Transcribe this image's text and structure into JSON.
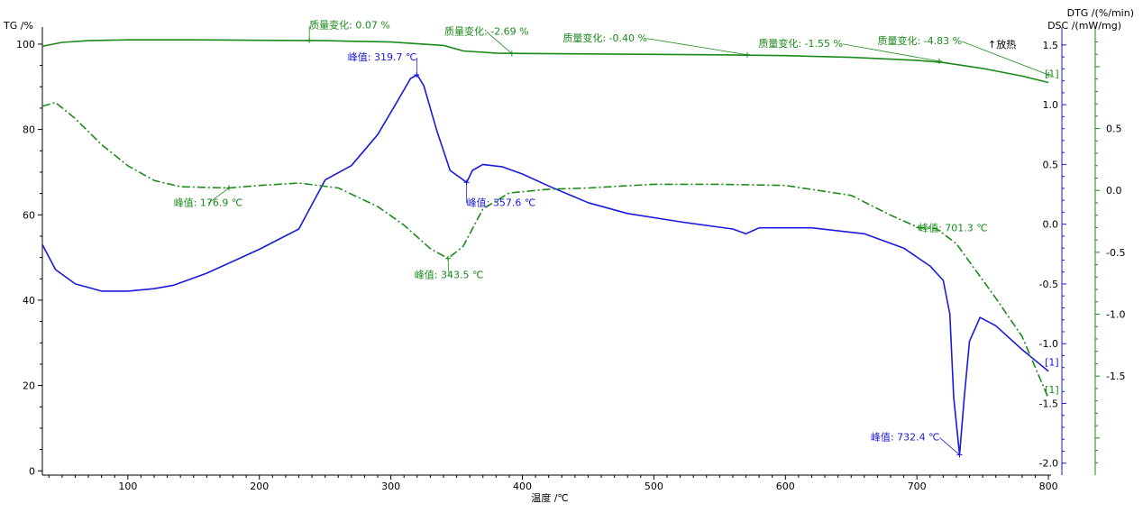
{
  "chart_data": {
    "type": "line",
    "title": "",
    "xlabel": "温度 /℃",
    "xlim": [
      35,
      802
    ],
    "x_ticks": [
      100,
      200,
      300,
      400,
      500,
      600,
      700,
      800
    ],
    "axes": {
      "tg": {
        "label": "TG /%",
        "ylim": [
          -1,
          104
        ],
        "ticks": [
          0,
          20,
          40,
          60,
          80,
          100
        ]
      },
      "dsc": {
        "label": "DSC /(mW/mg)",
        "ylim": [
          -2.1,
          1.65
        ],
        "ticks": [
          1.5,
          1.0,
          0.5,
          0.0,
          -0.5,
          -1.0,
          -1.5,
          -2.0
        ],
        "tick_labels": [
          "1.5",
          "1.0",
          "0.5",
          "0.0",
          "-0.5",
          "-1.0",
          "-1.5",
          "-2.0"
        ]
      },
      "dtg": {
        "label": "DTG /(%/min)",
        "ylim": [
          -2.3,
          1.32
        ],
        "ticks": [
          0.5,
          0.0,
          -0.5,
          -1.0,
          -1.5
        ],
        "tick_labels": [
          "0.5",
          "0.0",
          "-0.5",
          "-1.0",
          "-1.5"
        ]
      }
    },
    "exo_label": "↑放热",
    "colors": {
      "tg": "#1a8a1a",
      "dsc": "#1a1adc",
      "dtg": "#1a8a1a",
      "axis": "#000000"
    },
    "series": [
      {
        "name": "TG",
        "axis": "tg",
        "style": "solid",
        "x": [
          35,
          50,
          70,
          100,
          150,
          200,
          250,
          300,
          340,
          355,
          380,
          400,
          450,
          500,
          550,
          600,
          650,
          700,
          720,
          750,
          780,
          800
        ],
        "y": [
          99.5,
          100.4,
          100.8,
          101.0,
          101.0,
          100.9,
          100.8,
          100.5,
          99.7,
          98.4,
          97.9,
          97.8,
          97.7,
          97.6,
          97.5,
          97.3,
          96.9,
          96.2,
          95.7,
          94.3,
          92.5,
          91.0
        ]
      },
      {
        "name": "DSC",
        "axis": "dsc",
        "style": "solid",
        "x": [
          35,
          45,
          60,
          80,
          100,
          120,
          135,
          160,
          200,
          230,
          250,
          270,
          290,
          305,
          315,
          320,
          325,
          335,
          345,
          357.6,
          362,
          370,
          385,
          400,
          420,
          450,
          480,
          520,
          560,
          570,
          580,
          620,
          660,
          690,
          710,
          720,
          725,
          728,
          732.4,
          736,
          740,
          748,
          760,
          780,
          800
        ],
        "y": [
          -0.17,
          -0.38,
          -0.5,
          -0.56,
          -0.56,
          -0.54,
          -0.51,
          -0.41,
          -0.21,
          -0.04,
          0.37,
          0.49,
          0.75,
          1.03,
          1.22,
          1.25,
          1.16,
          0.78,
          0.45,
          0.35,
          0.45,
          0.5,
          0.48,
          0.42,
          0.32,
          0.18,
          0.09,
          0.02,
          -0.04,
          -0.08,
          -0.03,
          -0.03,
          -0.08,
          -0.2,
          -0.35,
          -0.47,
          -0.75,
          -1.45,
          -1.93,
          -1.45,
          -0.98,
          -0.78,
          -0.85,
          -1.05,
          -1.23
        ]
      },
      {
        "name": "DTG",
        "axis": "dtg",
        "style": "dashdot",
        "x": [
          35,
          45,
          60,
          80,
          100,
          120,
          140,
          176.9,
          200,
          230,
          260,
          290,
          310,
          330,
          343.5,
          355,
          370,
          390,
          420,
          450,
          500,
          550,
          600,
          650,
          680,
          701.3,
          715,
          730,
          760,
          780,
          800
        ],
        "y": [
          0.68,
          0.71,
          0.58,
          0.37,
          0.2,
          0.08,
          0.03,
          0.02,
          0.04,
          0.06,
          0.02,
          -0.13,
          -0.28,
          -0.47,
          -0.55,
          -0.45,
          -0.15,
          -0.02,
          0.01,
          0.02,
          0.05,
          0.05,
          0.04,
          -0.04,
          -0.2,
          -0.3,
          -0.31,
          -0.43,
          -0.87,
          -1.18,
          -1.68
        ]
      }
    ],
    "annotations": [
      {
        "text": "峰值: 319.7 ℃",
        "series": "DSC",
        "x": 319.7,
        "y": 1.25,
        "color": "#1a1adc",
        "anchor": "end",
        "dx": 0,
        "dy": -16
      },
      {
        "text": "峰值: 357.6 ℃",
        "series": "DSC",
        "x": 357.6,
        "y": 0.35,
        "color": "#1a1adc",
        "anchor": "start",
        "dx": 0,
        "dy": 26
      },
      {
        "text": "峰值: 732.4 ℃",
        "series": "DSC",
        "x": 732.4,
        "y": -1.93,
        "color": "#1a1adc",
        "anchor": "end",
        "dx": -22,
        "dy": -16
      },
      {
        "text": "峰值: 176.9 ℃",
        "series": "DTG",
        "x": 176.9,
        "y": 0.02,
        "color": "#1a8a1a",
        "anchor": "middle",
        "dx": -23,
        "dy": 20
      },
      {
        "text": "峰值: 343.5 ℃",
        "series": "DTG",
        "x": 343.5,
        "y": -0.55,
        "color": "#1a8a1a",
        "anchor": "middle",
        "dx": 1,
        "dy": 22
      },
      {
        "text": "峰值: 701.3 ℃",
        "series": "DTG",
        "x": 701.3,
        "y": -0.3,
        "color": "#1a8a1a",
        "anchor": "start",
        "dx": 0,
        "dy": 4
      },
      {
        "text": "质量变化: 0.07 %",
        "series": "TG",
        "x": 238,
        "y": 100.9,
        "color": "#1a8a1a",
        "anchor": "start",
        "dx": 0,
        "dy": -13
      },
      {
        "text": "质量变化: -2.69 %",
        "series": "TG",
        "x": 392,
        "y": 97.8,
        "color": "#1a8a1a",
        "anchor": "middle",
        "dx": -28,
        "dy": -21
      },
      {
        "text": "质量变化: -0.40 %",
        "series": "TG",
        "x": 571,
        "y": 97.5,
        "color": "#1a8a1a",
        "anchor": "end",
        "dx": -111,
        "dy": -15
      },
      {
        "text": "质量变化: -1.55 %",
        "series": "TG",
        "x": 717,
        "y": 96.0,
        "color": "#1a8a1a",
        "anchor": "end",
        "dx": -107,
        "dy": -16
      },
      {
        "text": "质量变化: -4.83 %",
        "series": "TG",
        "x": 800,
        "y": 92.8,
        "color": "#1a8a1a",
        "anchor": "end",
        "dx": -96,
        "dy": -34
      }
    ],
    "end_markers": [
      {
        "text": "[1]",
        "series": "DSC",
        "color": "#1a1adc"
      },
      {
        "text": "[1]",
        "series": "DTG",
        "color": "#1a8a1a"
      },
      {
        "text": "[1]",
        "series": "TG",
        "color": "#1a8a1a"
      }
    ]
  }
}
